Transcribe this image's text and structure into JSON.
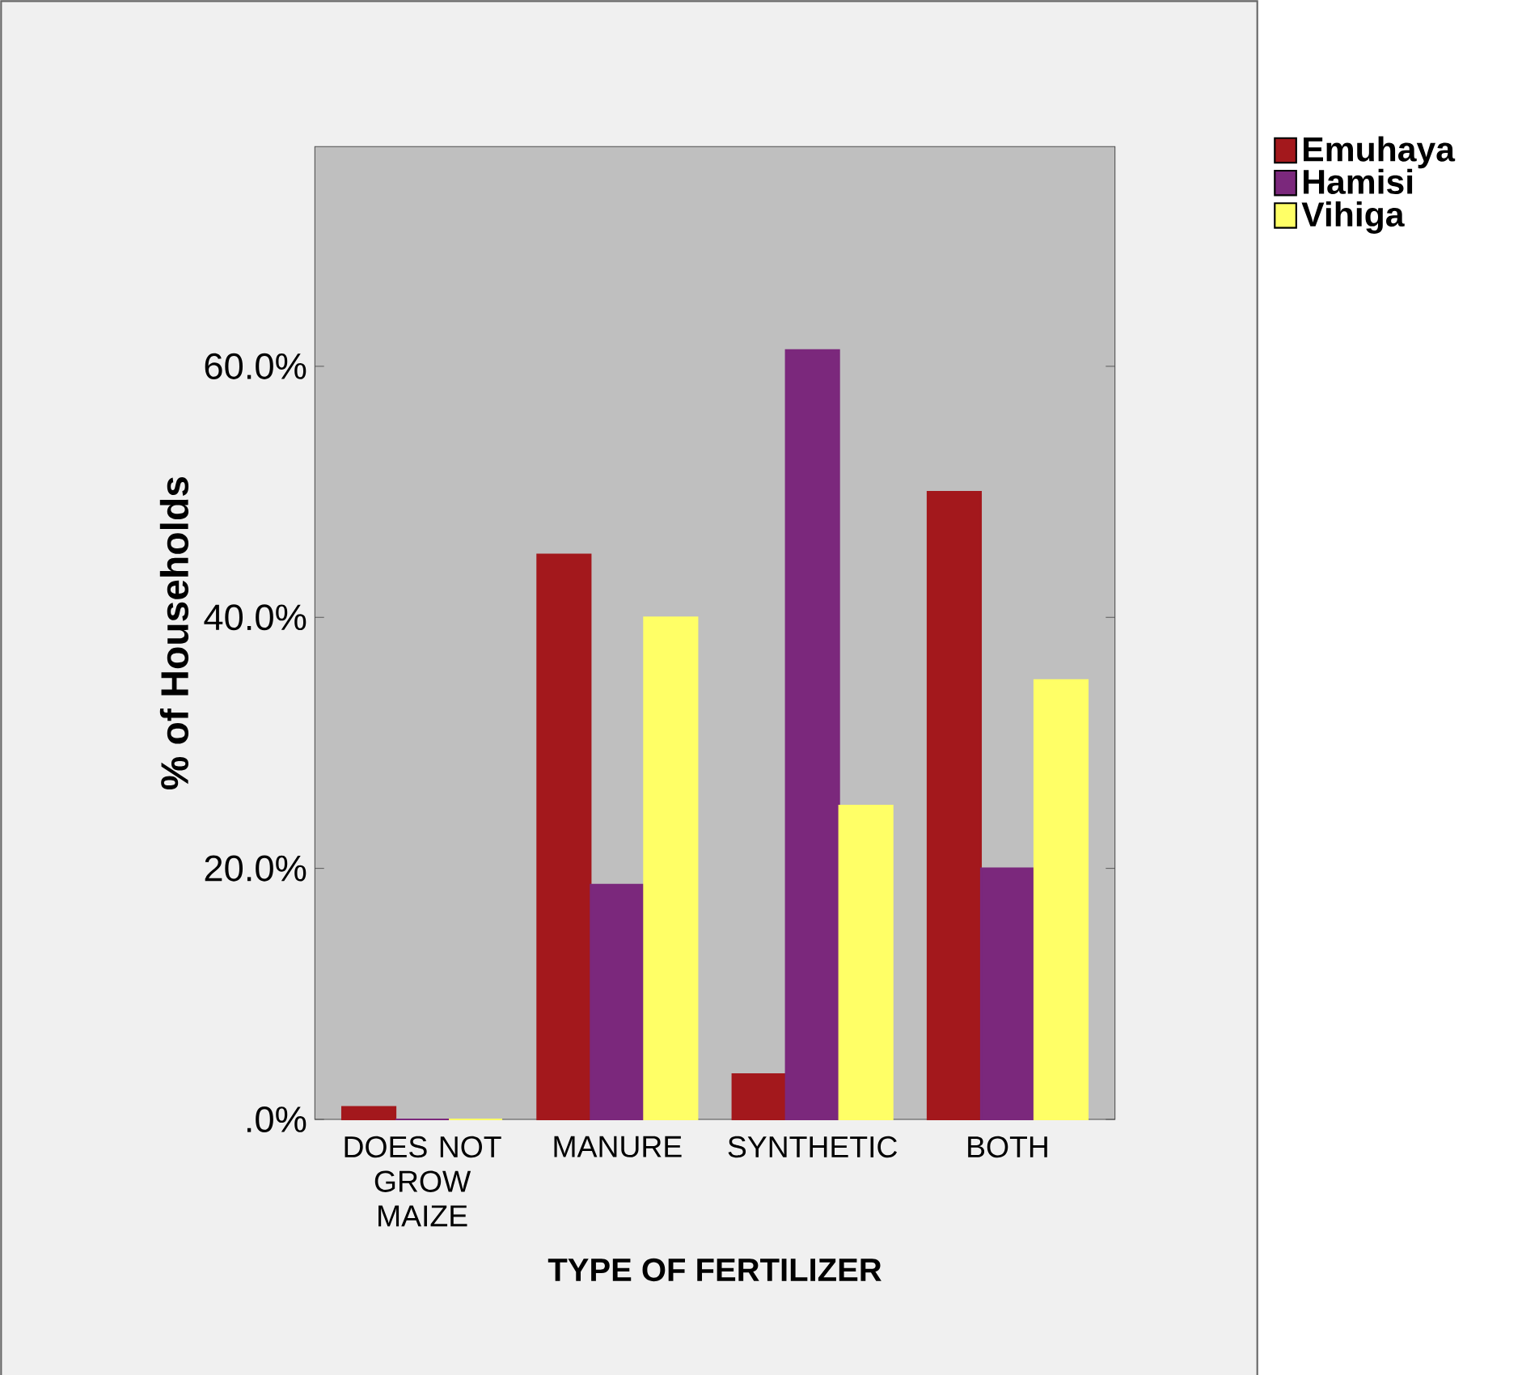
{
  "chart_data": {
    "type": "bar",
    "xlabel": "TYPE OF FERTILIZER",
    "ylabel": "% of Households",
    "categories": [
      "DOES NOT GROW MAIZE",
      "MANURE",
      "SYNTHETIC",
      "BOTH"
    ],
    "series": [
      {
        "name": "Emuhaya",
        "color": "#a3181c",
        "values": [
          1.0,
          45.0,
          3.6,
          50.0
        ]
      },
      {
        "name": "Hamisi",
        "color": "#7b287c",
        "values": [
          0,
          18.7,
          61.3,
          20.0
        ]
      },
      {
        "name": "Vihiga",
        "color": "#ffff66",
        "values": [
          0,
          40.0,
          25.0,
          35.0
        ]
      }
    ],
    "ylim": [
      0,
      77.5
    ],
    "yticks": [
      {
        "value": 0,
        "label": ".0%"
      },
      {
        "value": 20,
        "label": "20.0%"
      },
      {
        "value": 40,
        "label": "40.0%"
      },
      {
        "value": 60,
        "label": "60.0%"
      }
    ],
    "legend": "top right",
    "grid": false
  }
}
